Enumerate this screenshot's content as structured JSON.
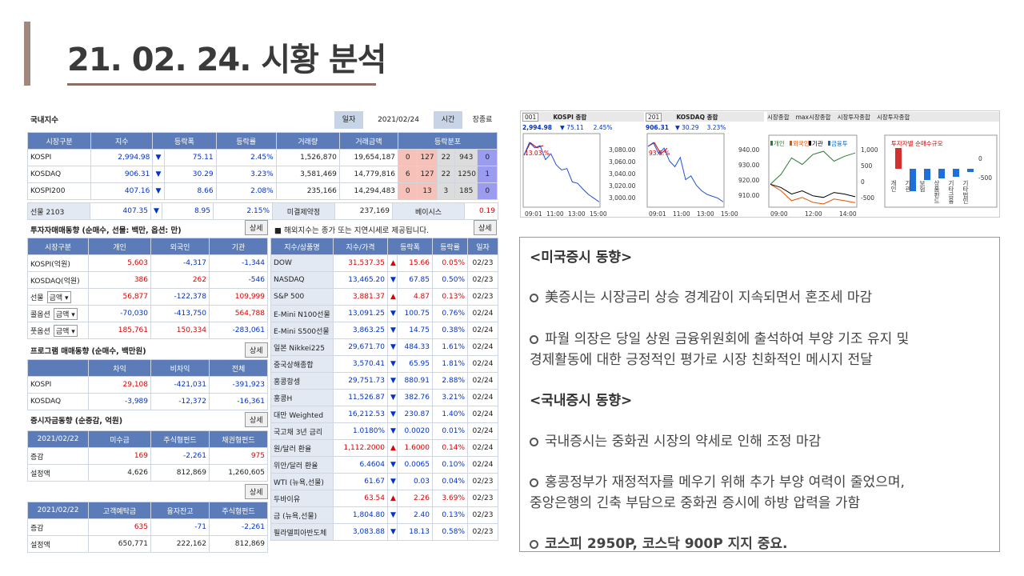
{
  "slide": {
    "title": "21. 02. 24. 시황 분석"
  },
  "hts": {
    "domestic_label": "국내지수",
    "date_label": "일자",
    "date_value": "2021/02/24",
    "time_label": "시간",
    "time_value": "장종료",
    "idx_headers": [
      "시장구분",
      "지수",
      "등락폭",
      "등락률",
      "거래량",
      "거래금액",
      "등락분포"
    ],
    "idx_rows": [
      [
        "KOSPI",
        "2,994.98",
        "▼",
        "75.11",
        "2.45%",
        "1,526,870",
        "19,654,187",
        "0",
        "127",
        "22",
        "943",
        "0"
      ],
      [
        "KOSDAQ",
        "906.31",
        "▼",
        "30.29",
        "3.23%",
        "3,581,469",
        "14,779,816",
        "6",
        "127",
        "22",
        "1250",
        "1"
      ],
      [
        "KOSPI200",
        "407.16",
        "▼",
        "8.66",
        "2.08%",
        "235,166",
        "14,294,483",
        "0",
        "13",
        "3",
        "185",
        "0"
      ]
    ],
    "futures": [
      "선물 2103",
      "407.35",
      "▼",
      "8.95",
      "2.15%",
      "미결제약정",
      "237,169",
      "베이시스",
      "0.19"
    ],
    "investor_title": "투자자매매동향 (순매수, 선물: 백만, 옵션: 만)",
    "detail": "상세",
    "investor_headers": [
      "시장구분",
      "개인",
      "외국인",
      "기관"
    ],
    "investor_rows": [
      [
        "KOSPI(억원)",
        "",
        "5,603",
        "-4,317",
        "-1,344"
      ],
      [
        "KOSDAQ(억원)",
        "",
        "386",
        "262",
        "-546"
      ],
      [
        "선물",
        "금액",
        "56,877",
        "-122,378",
        "109,999"
      ],
      [
        "콜옵션",
        "금액",
        "-70,030",
        "-413,750",
        "564,788"
      ],
      [
        "풋옵션",
        "금액",
        "185,761",
        "150,334",
        "-283,061"
      ]
    ],
    "program_title": "프로그램 매매동향 (순매수, 백만원)",
    "program_headers": [
      "",
      "차익",
      "비차익",
      "전체"
    ],
    "program_rows": [
      [
        "KOSPI",
        "29,108",
        "-421,031",
        "-391,923"
      ],
      [
        "KOSDAQ",
        "-3,989",
        "-12,372",
        "-16,361"
      ]
    ],
    "fund_title": "증시자금동향 (순증감, 억원)",
    "fund_headers": [
      "2021/02/22",
      "미수금",
      "주식형펀드",
      "채권형펀드"
    ],
    "fund_rows": [
      [
        "증감",
        "169",
        "-2,261",
        "975"
      ],
      [
        "설정액",
        "4,626",
        "812,869",
        "1,260,605"
      ]
    ],
    "fund2_headers": [
      "2021/02/22",
      "고객예탁금",
      "융자잔고",
      "주식형펀드"
    ],
    "fund2_rows": [
      [
        "증감",
        "635",
        "-71",
        "-2,261"
      ],
      [
        "설정액",
        "650,771",
        "222,162",
        "812,869"
      ]
    ],
    "overseas_note": "■ 해외지수는 종가 또는 지연시세로 제공됩니다.",
    "overseas_headers": [
      "지수/상품명",
      "지수/가격",
      "등락폭",
      "등락률",
      "일자"
    ],
    "overseas_rows": [
      [
        "DOW",
        "31,537.35",
        "▲",
        "15.66",
        "0.05%",
        "02/23"
      ],
      [
        "NASDAQ",
        "13,465.20",
        "▼",
        "67.85",
        "0.50%",
        "02/23"
      ],
      [
        "S&P 500",
        "3,881.37",
        "▲",
        "4.87",
        "0.13%",
        "02/23"
      ],
      [
        "E-Mini N100선물",
        "13,091.25",
        "▼",
        "100.75",
        "0.76%",
        "02/24"
      ],
      [
        "E-Mini S500선물",
        "3,863.25",
        "▼",
        "14.75",
        "0.38%",
        "02/24"
      ],
      [
        "일본 Nikkei225",
        "29,671.70",
        "▼",
        "484.33",
        "1.61%",
        "02/24"
      ],
      [
        "중국상해종합",
        "3,570.41",
        "▼",
        "65.95",
        "1.81%",
        "02/24"
      ],
      [
        "홍콩항셍",
        "29,751.73",
        "▼",
        "880.91",
        "2.88%",
        "02/24"
      ],
      [
        "홍콩H",
        "11,526.87",
        "▼",
        "382.76",
        "3.21%",
        "02/24"
      ],
      [
        "대만 Weighted",
        "16,212.53",
        "▼",
        "230.87",
        "1.40%",
        "02/24"
      ],
      [
        "국고채 3년 금리",
        "1.0180%",
        "▼",
        "0.0020",
        "0.01%",
        "02/24"
      ],
      [
        "원/달러 환율",
        "1,112.2000",
        "▲",
        "1.6000",
        "0.14%",
        "02/24"
      ],
      [
        "위안/달러 환율",
        "6.4604",
        "▼",
        "0.0065",
        "0.10%",
        "02/24"
      ],
      [
        "WTI (뉴욕,선물)",
        "61.67",
        "▼",
        "0.03",
        "0.04%",
        "02/23"
      ],
      [
        "두바이유",
        "63.54",
        "▲",
        "2.26",
        "3.69%",
        "02/23"
      ],
      [
        "금 (뉴욕,선물)",
        "1,804.80",
        "▼",
        "2.40",
        "0.13%",
        "02/23"
      ],
      [
        "필라델피아반도체",
        "3,083.88",
        "▼",
        "18.13",
        "0.58%",
        "02/23"
      ]
    ]
  },
  "charts": {
    "kospi_code": "001",
    "kospi_name": "KOSPI 종합",
    "kospi_val": "2,994.98",
    "kospi_chg": "▼  75.11",
    "kospi_pct": "2.45%",
    "kosdaq_code": "201",
    "kosdaq_name": "KOSDAQ 종합",
    "kosdaq_val": "906.31",
    "kosdaq_chg": "▼  30.29",
    "kosdaq_pct": "3.23%",
    "tabs": [
      "시장종합",
      "max시장종합",
      "시장투자종합",
      "시장투자종합"
    ],
    "kospi_axis": [
      "3,080.00",
      "3,060.00",
      "3,040.00",
      "3,020.00",
      "3,000.00"
    ],
    "kospi_times": [
      "09:01",
      "11:00",
      "13:00",
      "15:00"
    ],
    "kosdaq_axis": [
      "940.00",
      "930.00",
      "920.00",
      "910.00"
    ],
    "kosdaq_times": [
      "09:01",
      "11:00",
      "13:00",
      "15:00"
    ],
    "legend": [
      "개인",
      "외국인",
      "기관",
      "금융투"
    ],
    "inv_axis": [
      "1,000",
      "500",
      "0",
      "-500"
    ],
    "inv_times": [
      "09:00",
      "12:00",
      "14:00"
    ],
    "net_title": "투자자별 순매수규모",
    "net_axis": [
      "0",
      "-500"
    ],
    "net_cats": [
      "개인",
      "기관",
      "보험",
      "상품펀드",
      "기타금융",
      "기타법인"
    ],
    "label_13": "13.03.%",
    "label_93": "93.6.%",
    "kospi_path": [
      3058,
      3075,
      3068,
      3071,
      3052,
      3060,
      3045,
      3038,
      3040,
      3022,
      3020,
      3012,
      3005,
      3000,
      2995
    ],
    "kosdaq_path": [
      936,
      938,
      932,
      935,
      928,
      925,
      930,
      918,
      920,
      915,
      912,
      910,
      909,
      908,
      906
    ]
  },
  "market": {
    "us_heading": "<미국증시 동향>",
    "us1": "美증시는 시장금리 상승 경계감이 지속되면서 혼조세 마감",
    "us2a": "파월 의장은 당일 상원 금융위원회에 출석하여 부양 기조 유지 및",
    "us2b": "경제활동에 대한 긍정적인 평가로 시장 친화적인 메시지 전달",
    "kr_heading": "<국내증시 동향>",
    "kr1": "국내증시는 중화권 시장의 약세로 인해 조정 마감",
    "kr2a": "홍콩정부가 재정적자를 메우기 위해 추가 부양 여력이 줄었으며,",
    "kr2b": "중앙은행의 긴축 부담으로 중화권 증시에 하방 압력을 가함",
    "kr3": "코스피 2950P, 코스닥 900P 지지 중요."
  }
}
